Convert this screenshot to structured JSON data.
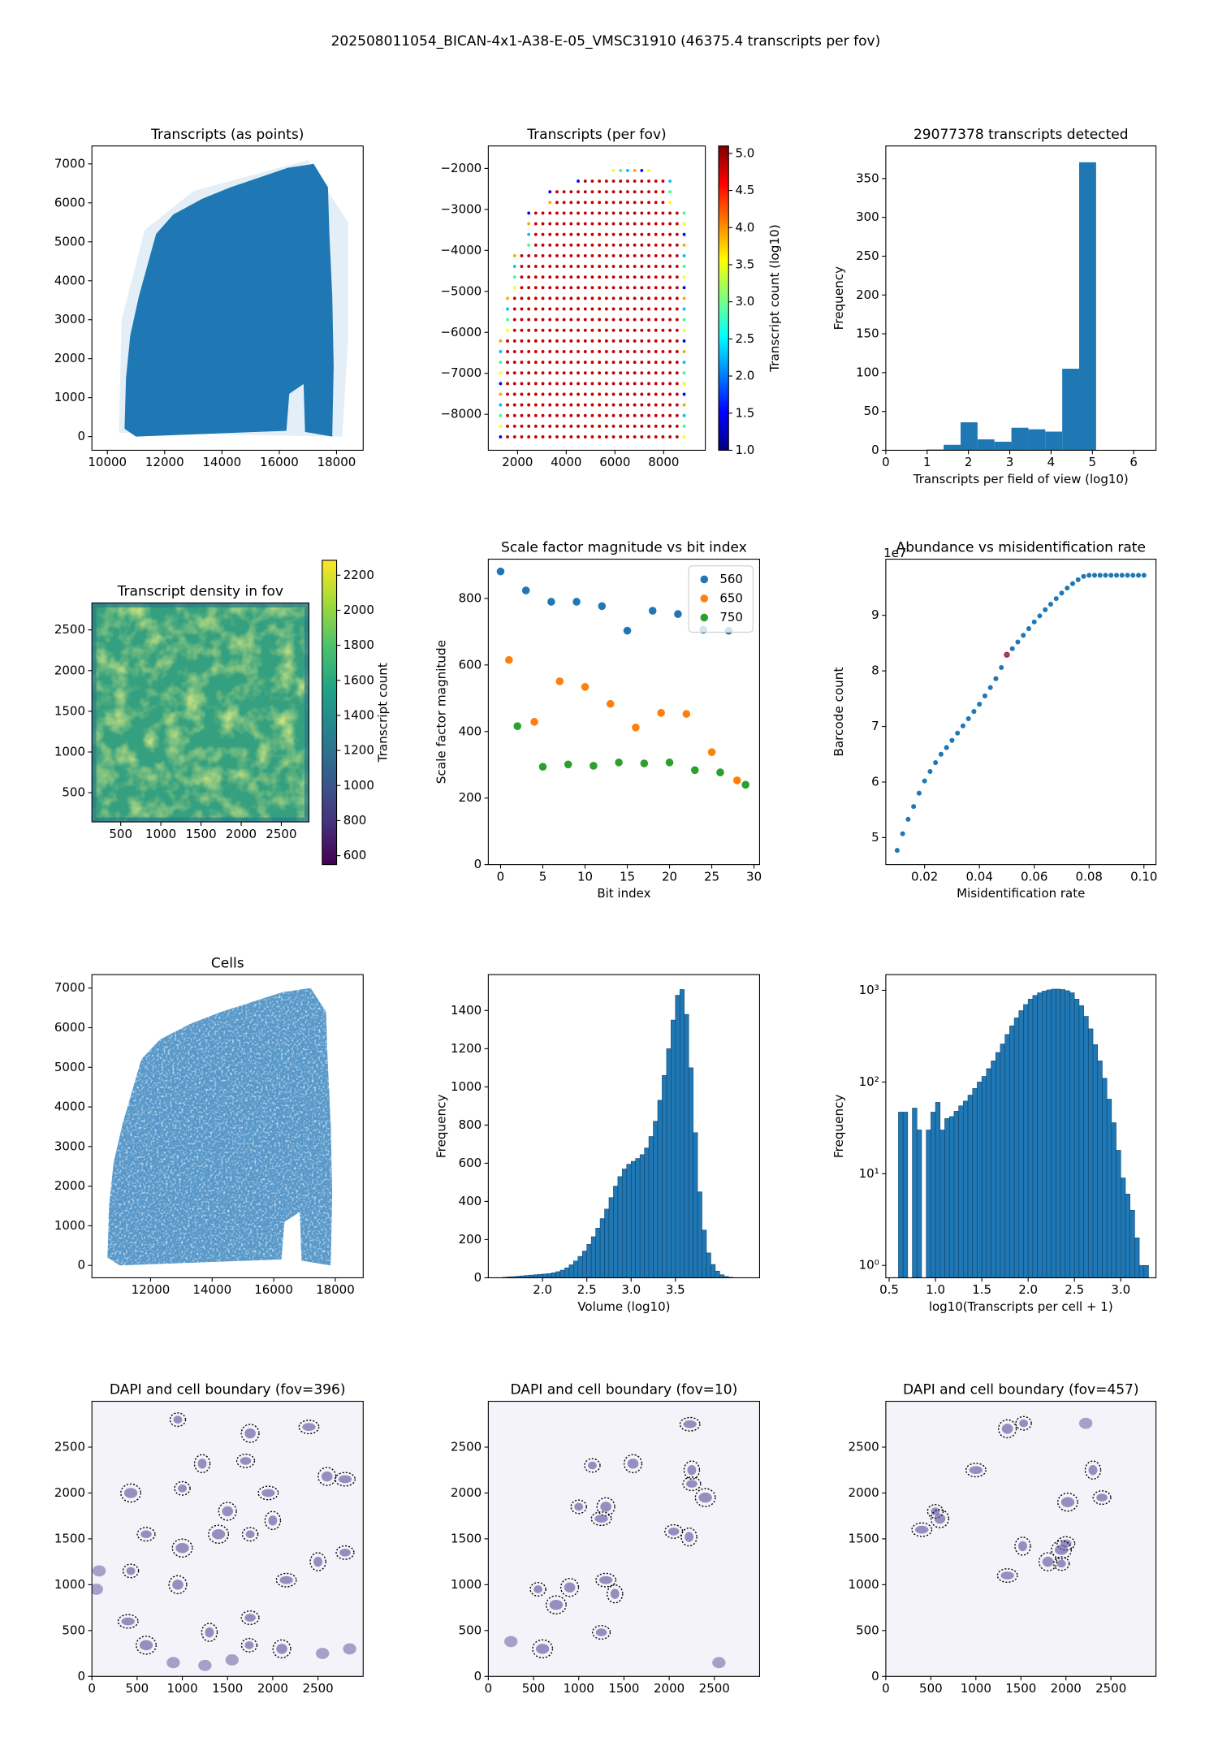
{
  "title": "202508011054_BICAN-4x1-A38-E-05_VMSC31910 (46375.4 transcripts per fov)",
  "chart_data": [
    {
      "type": "image",
      "title": "Transcripts (as points)",
      "color": "#1f77b4",
      "xlim": [
        9460,
        18930
      ],
      "ylim": [
        -350,
        7460
      ],
      "xticks": [
        10000,
        12000,
        14000,
        16000,
        18000
      ],
      "yticks": [
        0,
        1000,
        2000,
        3000,
        4000,
        5000,
        6000,
        7000
      ]
    },
    {
      "type": "image",
      "title": "Transcripts (per fov)",
      "xlim": [
        800,
        9710
      ],
      "ylim": [
        -8877,
        -1452
      ],
      "xticks": [
        2000,
        4000,
        6000,
        8000
      ],
      "yticks": [
        {
          "value": -2000,
          "label": "−2000"
        },
        {
          "value": -3000,
          "label": "−3000"
        },
        {
          "value": -4000,
          "label": "−4000"
        },
        {
          "value": -5000,
          "label": "−5000"
        },
        {
          "value": -6000,
          "label": "−6000"
        },
        {
          "value": -7000,
          "label": "−7000"
        },
        {
          "value": -8000,
          "label": "−8000"
        }
      ],
      "colorbar": {
        "label": "Transcript count (log10)",
        "colormap": "jet",
        "lim": [
          1.0,
          5.1
        ],
        "ticks": [
          {
            "value": 1,
            "label": "1.0"
          },
          1.5,
          {
            "value": 2,
            "label": "2.0"
          },
          2.5,
          {
            "value": 3,
            "label": "3.0"
          },
          3.5,
          {
            "value": 4,
            "label": "4.0"
          },
          4.5,
          {
            "value": 5,
            "label": "5.0"
          }
        ]
      }
    },
    {
      "type": "histogram",
      "title": "29077378 transcripts detected",
      "xlabel": "Transcripts per field of view (log10)",
      "ylabel": "Frequency",
      "color": "#1f77b4",
      "bins": [
        0.99,
        1.4,
        1.81,
        2.22,
        2.63,
        3.04,
        3.45,
        3.86,
        4.27,
        4.68,
        5.09
      ],
      "values": [
        1,
        7,
        36,
        14,
        11,
        29,
        27,
        24,
        105,
        371
      ],
      "xlim": [
        0,
        6.54
      ],
      "ylim": [
        0,
        392
      ],
      "xticks": [
        0,
        1,
        2,
        3,
        4,
        5,
        6
      ],
      "yticks": [
        0,
        50,
        100,
        150,
        200,
        250,
        300,
        350
      ]
    },
    {
      "type": "image",
      "title": "Transcript density in fov",
      "xlim": [
        141,
        2844
      ],
      "ylim": [
        141,
        2831
      ],
      "xticks": [
        500,
        1000,
        1500,
        2000,
        2500
      ],
      "yticks": [
        500,
        1000,
        1500,
        2000,
        2500
      ],
      "colorbar": {
        "label": "Transcript count",
        "colormap": "viridis",
        "lim": [
          549,
          2285
        ],
        "ticks": [
          600,
          800,
          1000,
          1200,
          1400,
          1600,
          1800,
          2000,
          2200
        ]
      }
    },
    {
      "type": "scatter",
      "title": "Scale factor magnitude vs bit index",
      "xlabel": "Bit index",
      "ylabel": "Scale factor magnitude",
      "legend": "upper right",
      "series": [
        {
          "name": "560",
          "color": "#1f77b4",
          "x": [
            0,
            3,
            6,
            9,
            12,
            15,
            18,
            21,
            24,
            27
          ],
          "values": [
            881,
            824,
            790,
            790,
            777,
            703,
            763,
            753,
            706,
            703
          ]
        },
        {
          "name": "650",
          "color": "#ff7f0e",
          "x": [
            1,
            4,
            7,
            10,
            13,
            16,
            19,
            22,
            25,
            28
          ],
          "values": [
            615,
            429,
            551,
            534,
            483,
            412,
            456,
            453,
            338,
            253
          ]
        },
        {
          "name": "750",
          "color": "#2ca02c",
          "x": [
            2,
            5,
            8,
            11,
            14,
            17,
            20,
            23,
            26,
            29
          ],
          "values": [
            416,
            294,
            301,
            297,
            307,
            304,
            307,
            284,
            277,
            240
          ]
        }
      ],
      "xlim": [
        -1.45,
        30.66
      ],
      "ylim": [
        0,
        918
      ],
      "xticks": [
        0,
        5,
        10,
        15,
        20,
        25,
        30
      ],
      "yticks": [
        0,
        200,
        400,
        600,
        800
      ]
    },
    {
      "type": "scatter",
      "title": "Abundance vs misidentification rate",
      "xlabel": "Misidentification rate",
      "ylabel": "Barcode count",
      "y_offset_label": "1e7",
      "series": [
        {
          "color": "#1f77b4",
          "x": [
            0.01,
            0.012,
            0.014,
            0.016,
            0.018,
            0.02,
            0.022,
            0.024,
            0.026,
            0.028,
            0.03,
            0.032,
            0.034,
            0.036,
            0.038,
            0.04,
            0.042,
            0.044,
            0.046,
            0.048,
            0.05,
            0.052,
            0.054,
            0.056,
            0.058,
            0.06,
            0.062,
            0.064,
            0.066,
            0.068,
            0.07,
            0.072,
            0.074,
            0.076,
            0.078,
            0.08,
            0.082,
            0.084,
            0.086,
            0.088,
            0.09,
            0.092,
            0.094,
            0.096,
            0.098,
            0.1
          ],
          "values": [
            4.77,
            5.07,
            5.33,
            5.56,
            5.8,
            6.02,
            6.19,
            6.35,
            6.5,
            6.62,
            6.75,
            6.88,
            7.01,
            7.14,
            7.27,
            7.4,
            7.55,
            7.7,
            7.86,
            8.06,
            8.29,
            8.4,
            8.52,
            8.64,
            8.76,
            8.88,
            8.99,
            9.1,
            9.2,
            9.3,
            9.4,
            9.49,
            9.57,
            9.64,
            9.7,
            9.72,
            9.72,
            9.72,
            9.72,
            9.72,
            9.72,
            9.72,
            9.72,
            9.72,
            9.72,
            9.72
          ]
        },
        {
          "color": "#ff0000",
          "marker": "open",
          "x": [
            0.05
          ],
          "values": [
            8.29
          ]
        }
      ],
      "xlim": [
        0.00586,
        0.1044
      ],
      "ylim": [
        4.515,
        10.01
      ],
      "xticks": [
        0.02,
        0.04,
        0.06,
        0.08,
        {
          "value": 0.1,
          "label": "0.10"
        }
      ],
      "yticks": [
        5,
        6,
        7,
        8,
        9
      ]
    },
    {
      "type": "image",
      "title": "Cells",
      "color": "#1f77b4",
      "xlim": [
        10094,
        18906
      ],
      "ylim": [
        -312,
        7340
      ],
      "xticks": [
        12000,
        14000,
        16000,
        18000
      ],
      "yticks": [
        0,
        1000,
        2000,
        3000,
        4000,
        5000,
        6000,
        7000
      ]
    },
    {
      "type": "histogram",
      "xlabel": "Volume (log10)",
      "ylabel": "Frequency",
      "color": "#1f77b4",
      "edgecolor": "#0f3f66",
      "bins": [
        1.55,
        1.6,
        1.65,
        1.7,
        1.75,
        1.8,
        1.85,
        1.9,
        1.95,
        2,
        2.05,
        2.1,
        2.15,
        2.2,
        2.25,
        2.3,
        2.35,
        2.4,
        2.45,
        2.5,
        2.55,
        2.6,
        2.65,
        2.7,
        2.75,
        2.8,
        2.85,
        2.9,
        2.95,
        3,
        3.05,
        3.1,
        3.15,
        3.2,
        3.25,
        3.3,
        3.35,
        3.4,
        3.45,
        3.5,
        3.55,
        3.6,
        3.65,
        3.7,
        3.75,
        3.8,
        3.85,
        3.9,
        3.95,
        4,
        4.05,
        4.1,
        4.15
      ],
      "values": [
        3,
        5,
        6,
        8,
        10,
        12,
        14,
        16,
        18,
        20,
        22,
        26,
        32,
        40,
        52,
        68,
        88,
        112,
        140,
        175,
        215,
        260,
        310,
        360,
        420,
        480,
        530,
        570,
        595,
        610,
        625,
        645,
        680,
        740,
        820,
        930,
        1060,
        1200,
        1350,
        1480,
        1510,
        1380,
        1100,
        760,
        450,
        250,
        130,
        70,
        35,
        16,
        7,
        3
      ],
      "xlim": [
        1.388,
        4.45
      ],
      "ylim": [
        0,
        1588
      ],
      "xticks": [
        {
          "value": 2,
          "label": "2.0"
        },
        2.5,
        {
          "value": 3,
          "label": "3.0"
        },
        3.5
      ],
      "yticks": [
        0,
        200,
        400,
        600,
        800,
        1000,
        1200,
        1400
      ]
    },
    {
      "type": "histogram",
      "xlabel": "log10(Transcripts per cell + 1)",
      "ylabel": "Frequency",
      "color": "#1f77b4",
      "edgecolor": "#0f3f66",
      "ylog": true,
      "bins": [
        0.6,
        0.65,
        0.7,
        0.75,
        0.8,
        0.85,
        0.9,
        0.95,
        1,
        1.05,
        1.1,
        1.15,
        1.2,
        1.25,
        1.3,
        1.35,
        1.4,
        1.45,
        1.5,
        1.55,
        1.6,
        1.65,
        1.7,
        1.75,
        1.8,
        1.85,
        1.9,
        1.95,
        2,
        2.05,
        2.1,
        2.15,
        2.2,
        2.25,
        2.3,
        2.35,
        2.4,
        2.45,
        2.5,
        2.55,
        2.6,
        2.65,
        2.7,
        2.75,
        2.8,
        2.85,
        2.9,
        2.95,
        3,
        3.05,
        3.1,
        3.15,
        3.2,
        3.25,
        3.3
      ],
      "values": [
        47,
        47,
        0,
        52,
        30,
        0,
        30,
        47,
        60,
        30,
        40,
        42,
        48,
        55,
        62,
        72,
        85,
        100,
        115,
        140,
        170,
        210,
        260,
        330,
        410,
        500,
        600,
        700,
        800,
        880,
        940,
        980,
        1010,
        1030,
        1030,
        1020,
        990,
        940,
        800,
        680,
        520,
        380,
        256,
        170,
        110,
        65,
        36,
        18,
        9,
        6,
        4,
        2,
        1,
        1
      ],
      "xlim": [
        0.464,
        3.38
      ],
      "ylim": [
        0.733,
        1483
      ],
      "xticks": [
        0.5,
        {
          "value": 1,
          "label": "1.0"
        },
        1.5,
        {
          "value": 2,
          "label": "2.0"
        },
        2.5,
        {
          "value": 3,
          "label": "3.0"
        }
      ],
      "yticks": [
        {
          "value": 1,
          "label": "10⁰"
        },
        {
          "value": 10,
          "label": "10¹"
        },
        {
          "value": 100,
          "label": "10²"
        },
        {
          "value": 1000,
          "label": "10³"
        }
      ]
    },
    {
      "type": "image",
      "title": "DAPI and cell boundary (fov=396)",
      "xlim": [
        0,
        3000
      ],
      "ylim": [
        0,
        3000
      ],
      "xticks": [
        0,
        500,
        1000,
        1500,
        2000,
        2500
      ],
      "yticks": [
        0,
        500,
        1000,
        1500,
        2000,
        2500
      ]
    },
    {
      "type": "image",
      "title": "DAPI and cell boundary (fov=10)",
      "xlim": [
        0,
        3000
      ],
      "ylim": [
        0,
        3000
      ],
      "xticks": [
        0,
        500,
        1000,
        1500,
        2000,
        2500
      ],
      "yticks": [
        0,
        500,
        1000,
        1500,
        2000,
        2500
      ]
    },
    {
      "type": "image",
      "title": "DAPI and cell boundary (fov=457)",
      "xlim": [
        0,
        3000
      ],
      "ylim": [
        0,
        3000
      ],
      "xticks": [
        0,
        500,
        1000,
        1500,
        2000,
        2500
      ],
      "yticks": [
        0,
        500,
        1000,
        1500,
        2000,
        2500
      ]
    }
  ]
}
